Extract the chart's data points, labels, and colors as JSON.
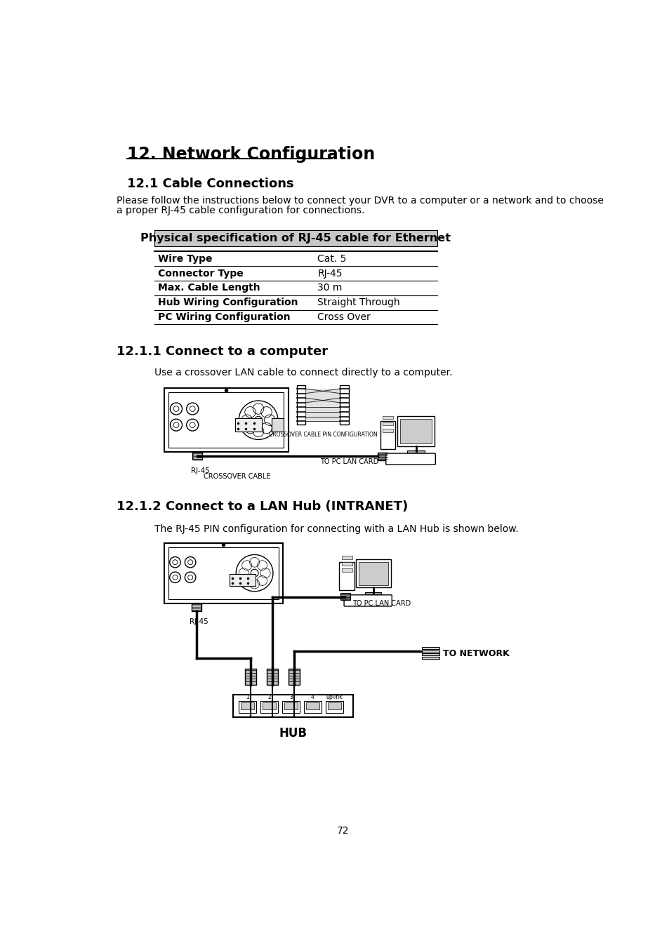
{
  "bg_color": "#ffffff",
  "page_number": "72",
  "title": "12. Network Configuration",
  "section_1": "12.1 Cable Connections",
  "para_1a": "Please follow the instructions below to connect your DVR to a computer or a network and to choose",
  "para_1b": "a proper RJ-45 cable configuration for connections.",
  "table_header": "Physical specification of RJ-45 cable for Ethernet",
  "table_header_bg": "#c8c8c8",
  "table_rows": [
    [
      "Wire Type",
      "Cat. 5"
    ],
    [
      "Connector Type",
      "RJ-45"
    ],
    [
      "Max. Cable Length",
      "30 m"
    ],
    [
      "Hub Wiring Configuration",
      "Straight Through"
    ],
    [
      "PC Wiring Configuration",
      "Cross Over"
    ]
  ],
  "section_2": "12.1.1 Connect to a computer",
  "para_2": "Use a crossover LAN cable to connect directly to a computer.",
  "crossover_label": "CROSSOVER CABLE PIN CONFIGURATION",
  "rj45_label": "RJ-45",
  "crossover_cable_label": "CROSSOVER CABLE",
  "to_pc_lan_card_label": "TO PC LAN CARD",
  "section_3": "12.1.2 Connect to a LAN Hub (INTRANET)",
  "para_3": "The RJ-45 PIN configuration for connecting with a LAN Hub is shown below.",
  "to_pc_lan_card_label2": "TO PC LAN CARD",
  "rj45_label2": "RJ-45",
  "to_network_label": "TO NETWORK",
  "hub_label": "HUB"
}
